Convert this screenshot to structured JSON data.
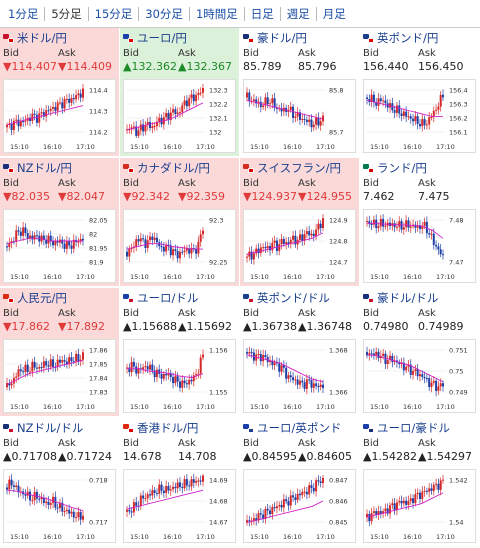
{
  "tabs": [
    {
      "label": "1分足",
      "active": false
    },
    {
      "label": "5分足",
      "active": true
    },
    {
      "label": "15分足",
      "active": false
    },
    {
      "label": "30分足",
      "active": false
    },
    {
      "label": "1時間足",
      "active": false
    },
    {
      "label": "日足",
      "active": false
    },
    {
      "label": "週足",
      "active": false
    },
    {
      "label": "月足",
      "active": false
    }
  ],
  "colors": {
    "down_bg": "#fbd9d9",
    "up_bg": "#dbf1d9",
    "down_text": "#e03a3a",
    "up_text": "#1d8a2a",
    "title": "#1a3f8f",
    "ma_line": "#d020c8",
    "candle_up": "#d62828",
    "candle_down": "#1e3fa8"
  },
  "labels": {
    "bid": "Bid",
    "ask": "Ask"
  },
  "pairs": [
    {
      "name": "米ドル/円",
      "dir": "down",
      "bid": "▼114.407",
      "ask": "▼114.409",
      "flags": [
        "us",
        "jp"
      ],
      "chart_data": {
        "type": "candlestick",
        "yticks": [
          "114.4",
          "114.3",
          "114.2"
        ],
        "xticks": [
          "15:10",
          "16:10",
          "17:10"
        ],
        "trend": [
          0.2,
          0.25,
          0.3,
          0.28,
          0.35,
          0.4,
          0.38,
          0.45,
          0.5,
          0.55,
          0.6,
          0.65,
          0.7,
          0.72,
          0.8,
          0.85
        ],
        "ma": [
          0.25,
          0.3,
          0.35,
          0.4,
          0.45,
          0.5,
          0.55,
          0.6
        ]
      }
    },
    {
      "name": "ユーロ/円",
      "dir": "up",
      "bid": "▲132.362",
      "ask": "▲132.367",
      "flags": [
        "eu",
        "jp"
      ],
      "chart_data": {
        "type": "candlestick",
        "yticks": [
          "132.3",
          "132.2",
          "132.1",
          "132"
        ],
        "xticks": [
          "15:10",
          "16:10",
          "17:10"
        ],
        "trend": [
          0.15,
          0.2,
          0.1,
          0.2,
          0.25,
          0.2,
          0.3,
          0.35,
          0.4,
          0.5,
          0.45,
          0.6,
          0.7,
          0.75,
          0.8,
          0.9
        ],
        "ma": [
          0.15,
          0.2,
          0.25,
          0.3,
          0.35,
          0.45,
          0.55,
          0.65
        ]
      }
    },
    {
      "name": "豪ドル/円",
      "dir": "flat",
      "bid": "85.789",
      "ask": "85.796",
      "flags": [
        "au",
        "jp"
      ],
      "chart_data": {
        "type": "candlestick",
        "yticks": [
          "85.8",
          "85.7"
        ],
        "xticks": [
          "15:10",
          "16:10",
          "17:10"
        ],
        "trend": [
          0.75,
          0.7,
          0.65,
          0.6,
          0.7,
          0.65,
          0.55,
          0.5,
          0.55,
          0.45,
          0.4,
          0.35,
          0.3,
          0.25,
          0.3,
          0.35
        ],
        "ma": [
          0.7,
          0.65,
          0.6,
          0.55,
          0.5,
          0.45,
          0.4,
          0.35
        ]
      }
    },
    {
      "name": "英ポンド/円",
      "dir": "flat",
      "bid": "156.440",
      "ask": "156.450",
      "flags": [
        "gb",
        "jp"
      ],
      "chart_data": {
        "type": "candlestick",
        "yticks": [
          "156.4",
          "156.3",
          "156.2",
          "156.1"
        ],
        "xticks": [
          "15:10",
          "16:10",
          "17:10"
        ],
        "trend": [
          0.75,
          0.7,
          0.65,
          0.72,
          0.6,
          0.55,
          0.5,
          0.45,
          0.4,
          0.35,
          0.3,
          0.25,
          0.3,
          0.45,
          0.6,
          0.8
        ],
        "ma": [
          0.7,
          0.65,
          0.6,
          0.55,
          0.5,
          0.45,
          0.4,
          0.4
        ]
      }
    },
    {
      "name": "NZドル/円",
      "dir": "down",
      "bid": "▼82.035",
      "ask": "▼82.047",
      "flags": [
        "nz",
        "jp"
      ],
      "chart_data": {
        "type": "candlestick",
        "yticks": [
          "82.05",
          "82",
          "81.95",
          "81.9"
        ],
        "xticks": [
          "15:10",
          "16:10",
          "17:10"
        ],
        "trend": [
          0.4,
          0.5,
          0.65,
          0.7,
          0.6,
          0.55,
          0.6,
          0.5,
          0.55,
          0.45,
          0.5,
          0.45,
          0.4,
          0.45,
          0.5,
          0.55
        ],
        "ma": [
          0.45,
          0.5,
          0.55,
          0.55,
          0.5,
          0.5,
          0.5,
          0.5
        ]
      }
    },
    {
      "name": "カナダドル/円",
      "dir": "down",
      "bid": "▼92.342",
      "ask": "▼92.359",
      "flags": [
        "ca",
        "jp"
      ],
      "chart_data": {
        "type": "candlestick",
        "yticks": [
          "92.3",
          "92.25"
        ],
        "xticks": [
          "15:10",
          "16:10",
          "17:10"
        ],
        "trend": [
          0.3,
          0.35,
          0.55,
          0.5,
          0.45,
          0.6,
          0.45,
          0.35,
          0.4,
          0.3,
          0.25,
          0.3,
          0.35,
          0.3,
          0.4,
          0.75
        ],
        "ma": [
          0.35,
          0.4,
          0.45,
          0.45,
          0.4,
          0.38,
          0.35,
          0.35
        ]
      }
    },
    {
      "name": "スイスフラン/円",
      "dir": "down",
      "bid": "▼124.937",
      "ask": "▼124.955",
      "flags": [
        "ch",
        "jp"
      ],
      "chart_data": {
        "type": "candlestick",
        "yticks": [
          "124.9",
          "124.8",
          "124.7"
        ],
        "xticks": [
          "15:10",
          "16:10",
          "17:10"
        ],
        "trend": [
          0.2,
          0.25,
          0.3,
          0.4,
          0.35,
          0.45,
          0.4,
          0.5,
          0.45,
          0.55,
          0.5,
          0.6,
          0.65,
          0.6,
          0.75,
          0.9
        ],
        "ma": [
          0.25,
          0.3,
          0.35,
          0.4,
          0.45,
          0.5,
          0.55,
          0.65
        ]
      }
    },
    {
      "name": "ランド/円",
      "dir": "flat",
      "bid": "7.462",
      "ask": "7.475",
      "flags": [
        "za",
        "jp"
      ],
      "chart_data": {
        "type": "candlestick",
        "yticks": [
          "7.48",
          "7.47"
        ],
        "xticks": [
          "15:10",
          "16:10",
          "17:10"
        ],
        "trend": [
          0.85,
          0.82,
          0.8,
          0.82,
          0.8,
          0.8,
          0.78,
          0.78,
          0.8,
          0.78,
          0.75,
          0.8,
          0.7,
          0.5,
          0.35,
          0.2
        ],
        "ma": [
          0.83,
          0.82,
          0.81,
          0.8,
          0.79,
          0.78,
          0.7,
          0.55
        ]
      }
    },
    {
      "name": "人民元/円",
      "dir": "down",
      "bid": "▼17.862",
      "ask": "▼17.892",
      "flags": [
        "cn",
        "jp"
      ],
      "chart_data": {
        "type": "candlestick",
        "yticks": [
          "17.86",
          "17.85",
          "17.84",
          "17.83"
        ],
        "xticks": [
          "15:10",
          "16:10",
          "17:10"
        ],
        "trend": [
          0.2,
          0.3,
          0.45,
          0.55,
          0.5,
          0.6,
          0.55,
          0.6,
          0.65,
          0.6,
          0.65,
          0.7,
          0.65,
          0.75,
          0.7,
          0.8
        ],
        "ma": [
          0.25,
          0.35,
          0.45,
          0.5,
          0.55,
          0.6,
          0.65,
          0.7
        ]
      }
    },
    {
      "name": "ユーロ/ドル",
      "dir": "flat",
      "bid": "▲1.15688",
      "ask": "▲1.15692",
      "flags": [
        "eu",
        "us"
      ],
      "chart_data": {
        "type": "candlestick",
        "yticks": [
          "1.156",
          "1.155"
        ],
        "xticks": [
          "15:10",
          "16:10",
          "17:10"
        ],
        "trend": [
          0.55,
          0.6,
          0.5,
          0.55,
          0.6,
          0.5,
          0.45,
          0.4,
          0.45,
          0.35,
          0.3,
          0.25,
          0.3,
          0.35,
          0.5,
          0.8
        ],
        "ma": [
          0.55,
          0.55,
          0.5,
          0.48,
          0.45,
          0.4,
          0.38,
          0.45
        ]
      }
    },
    {
      "name": "英ポンド/ドル",
      "dir": "flat",
      "bid": "▲1.36738",
      "ask": "▲1.36748",
      "flags": [
        "gb",
        "us"
      ],
      "chart_data": {
        "type": "candlestick",
        "yticks": [
          "1.368",
          "1.366"
        ],
        "xticks": [
          "15:10",
          "16:10",
          "17:10"
        ],
        "trend": [
          0.85,
          0.8,
          0.75,
          0.78,
          0.7,
          0.65,
          0.6,
          0.55,
          0.4,
          0.35,
          0.3,
          0.25,
          0.3,
          0.25,
          0.2,
          0.25
        ],
        "ma": [
          0.8,
          0.75,
          0.7,
          0.65,
          0.55,
          0.45,
          0.35,
          0.3
        ]
      }
    },
    {
      "name": "豪ドル/ドル",
      "dir": "flat",
      "bid": "0.74980",
      "ask": "0.74989",
      "flags": [
        "au",
        "us"
      ],
      "chart_data": {
        "type": "candlestick",
        "yticks": [
          "0.751",
          "0.75",
          "0.749"
        ],
        "xticks": [
          "15:10",
          "16:10",
          "17:10"
        ],
        "trend": [
          0.85,
          0.8,
          0.82,
          0.75,
          0.7,
          0.72,
          0.65,
          0.6,
          0.55,
          0.5,
          0.45,
          0.4,
          0.3,
          0.25,
          0.2,
          0.25
        ],
        "ma": [
          0.8,
          0.78,
          0.72,
          0.66,
          0.6,
          0.5,
          0.4,
          0.3
        ]
      }
    },
    {
      "name": "NZドル/ドル",
      "dir": "flat",
      "bid": "▲0.71708",
      "ask": "▲0.71724",
      "flags": [
        "nz",
        "us"
      ],
      "chart_data": {
        "type": "candlestick",
        "yticks": [
          "0.718",
          "0.717"
        ],
        "xticks": [
          "15:10",
          "16:10",
          "17:10"
        ],
        "trend": [
          0.75,
          0.85,
          0.7,
          0.65,
          0.6,
          0.55,
          0.6,
          0.5,
          0.45,
          0.5,
          0.4,
          0.35,
          0.3,
          0.25,
          0.2,
          0.25
        ],
        "ma": [
          0.7,
          0.68,
          0.62,
          0.58,
          0.52,
          0.45,
          0.38,
          0.32
        ]
      }
    },
    {
      "name": "香港ドル/円",
      "dir": "flat",
      "bid": "14.678",
      "ask": "14.708",
      "flags": [
        "hk",
        "jp"
      ],
      "chart_data": {
        "type": "candlestick",
        "yticks": [
          "14.69",
          "14.68",
          "14.67"
        ],
        "xticks": [
          "15:10",
          "16:10",
          "17:10"
        ],
        "trend": [
          0.3,
          0.35,
          0.45,
          0.55,
          0.6,
          0.65,
          0.7,
          0.72,
          0.7,
          0.75,
          0.78,
          0.8,
          0.82,
          0.85,
          0.88,
          0.9
        ],
        "ma": [
          0.35,
          0.4,
          0.45,
          0.5,
          0.55,
          0.6,
          0.65,
          0.7
        ]
      }
    },
    {
      "name": "ユーロ/英ポンド",
      "dir": "flat",
      "bid": "▲0.84595",
      "ask": "▲0.84605",
      "flags": [
        "eu",
        "gb"
      ],
      "chart_data": {
        "type": "candlestick",
        "yticks": [
          "0.847",
          "0.846",
          "0.845"
        ],
        "xticks": [
          "15:10",
          "16:10",
          "17:10"
        ],
        "trend": [
          0.1,
          0.15,
          0.2,
          0.25,
          0.3,
          0.35,
          0.4,
          0.45,
          0.5,
          0.55,
          0.6,
          0.65,
          0.7,
          0.75,
          0.85,
          0.9
        ],
        "ma": [
          0.1,
          0.15,
          0.2,
          0.25,
          0.3,
          0.35,
          0.4,
          0.5
        ]
      }
    },
    {
      "name": "ユーロ/豪ドル",
      "dir": "flat",
      "bid": "▲1.54282",
      "ask": "▲1.54297",
      "flags": [
        "eu",
        "au"
      ],
      "chart_data": {
        "type": "candlestick",
        "yticks": [
          "1.542",
          "1.54"
        ],
        "xticks": [
          "15:10",
          "16:10",
          "17:10"
        ],
        "trend": [
          0.2,
          0.25,
          0.3,
          0.28,
          0.35,
          0.4,
          0.45,
          0.5,
          0.45,
          0.55,
          0.6,
          0.65,
          0.7,
          0.75,
          0.8,
          0.85
        ],
        "ma": [
          0.2,
          0.25,
          0.3,
          0.35,
          0.4,
          0.45,
          0.55,
          0.65
        ]
      }
    }
  ]
}
